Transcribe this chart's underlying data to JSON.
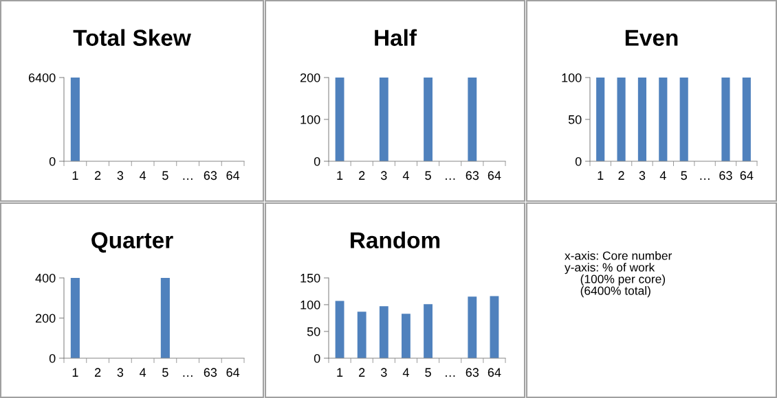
{
  "chart_data": [
    {
      "type": "bar",
      "title": "Total Skew",
      "categories": [
        "1",
        "2",
        "3",
        "4",
        "5",
        "…",
        "63",
        "64"
      ],
      "values": [
        6400,
        0,
        0,
        0,
        0,
        null,
        0,
        0
      ],
      "color": "#4f81bd",
      "ylim": [
        0,
        6400
      ],
      "yticks": [
        0,
        6400
      ],
      "grid": false,
      "legend": false
    },
    {
      "type": "bar",
      "title": "Half",
      "categories": [
        "1",
        "2",
        "3",
        "4",
        "5",
        "…",
        "63",
        "64"
      ],
      "values": [
        200,
        0,
        200,
        0,
        200,
        null,
        200,
        0
      ],
      "color": "#4f81bd",
      "ylim": [
        0,
        200
      ],
      "yticks": [
        0,
        100,
        200
      ],
      "grid": false,
      "legend": false
    },
    {
      "type": "bar",
      "title": "Even",
      "categories": [
        "1",
        "2",
        "3",
        "4",
        "5",
        "…",
        "63",
        "64"
      ],
      "values": [
        100,
        100,
        100,
        100,
        100,
        null,
        100,
        100
      ],
      "color": "#4f81bd",
      "ylim": [
        0,
        100
      ],
      "yticks": [
        0,
        50,
        100
      ],
      "grid": false,
      "legend": false
    },
    {
      "type": "bar",
      "title": "Quarter",
      "categories": [
        "1",
        "2",
        "3",
        "4",
        "5",
        "…",
        "63",
        "64"
      ],
      "values": [
        400,
        0,
        0,
        0,
        400,
        null,
        0,
        0
      ],
      "color": "#4f81bd",
      "ylim": [
        0,
        400
      ],
      "yticks": [
        0,
        200,
        400
      ],
      "grid": false,
      "legend": false
    },
    {
      "type": "bar",
      "title": "Random",
      "categories": [
        "1",
        "2",
        "3",
        "4",
        "5",
        "…",
        "63",
        "64"
      ],
      "values": [
        107,
        87,
        97,
        83,
        101,
        null,
        115,
        116
      ],
      "color": "#4f81bd",
      "ylim": [
        0,
        150
      ],
      "yticks": [
        0,
        50,
        100,
        150
      ],
      "grid": false,
      "legend": false
    },
    {
      "type": "other",
      "annotations": [
        "x-axis: Core number",
        "y-axis: % of work",
        "(100% per core)",
        "(6400% total)"
      ]
    }
  ]
}
